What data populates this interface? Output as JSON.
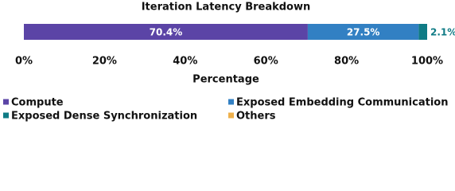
{
  "chart_data": {
    "type": "stacked-bar-horizontal",
    "title": "Iteration Latency Breakdown",
    "x_label": "Percentage",
    "xlim": [
      0,
      100
    ],
    "xticks": [
      {
        "value": 0,
        "label": "0%"
      },
      {
        "value": 20,
        "label": "20%"
      },
      {
        "value": 40,
        "label": "40%"
      },
      {
        "value": 60,
        "label": "60%"
      },
      {
        "value": 80,
        "label": "80%"
      },
      {
        "value": 100,
        "label": "100%"
      }
    ],
    "series": [
      {
        "name": "Compute",
        "color": "#5b44a6",
        "values": [
          70.4
        ],
        "value_labels": [
          "70.4%"
        ]
      },
      {
        "name": "Exposed Embedding Communication",
        "color": "#3280c3",
        "values": [
          27.5
        ],
        "value_labels": [
          "27.5%"
        ]
      },
      {
        "name": "Exposed Dense Synchronization",
        "color": "#0f7b85",
        "values": [
          2.1
        ],
        "value_labels": [
          "2.1%"
        ]
      },
      {
        "name": "Others",
        "color": "#eeb04b",
        "values": [
          0
        ]
      }
    ],
    "legend": "bottom"
  }
}
